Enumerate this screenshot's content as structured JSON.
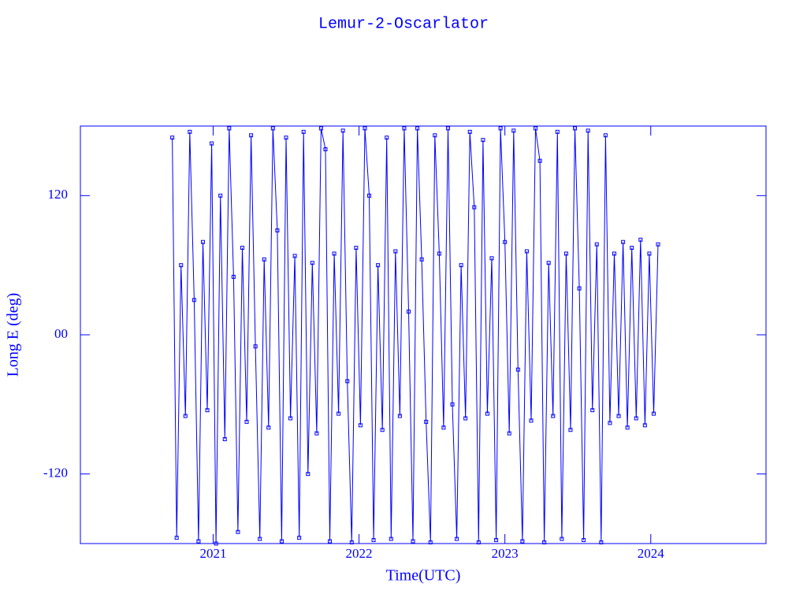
{
  "chart_data": {
    "type": "line",
    "title": "Lemur-2-Oscarlator",
    "xlabel": "Time(UTC)",
    "ylabel": "Long E (deg)",
    "color": "#0000ff",
    "xlim": [
      2020.09,
      2024.79
    ],
    "xticks": [
      2021,
      2022,
      2023,
      2024
    ],
    "ylim": [
      -180,
      180
    ],
    "yticks": [
      120,
      {
        "value": 0,
        "label": "00"
      },
      -120
    ],
    "x": [
      2020.72,
      2020.75,
      2020.78,
      2020.81,
      2020.84,
      2020.87,
      2020.9,
      2020.93,
      2020.96,
      2020.99,
      2021.02,
      2021.05,
      2021.08,
      2021.11,
      2021.14,
      2021.17,
      2021.2,
      2021.23,
      2021.26,
      2021.29,
      2021.32,
      2021.35,
      2021.38,
      2021.41,
      2021.44,
      2021.47,
      2021.5,
      2021.53,
      2021.56,
      2021.59,
      2021.62,
      2021.65,
      2021.68,
      2021.71,
      2021.74,
      2021.77,
      2021.8,
      2021.83,
      2021.86,
      2021.89,
      2021.92,
      2021.95,
      2021.98,
      2022.01,
      2022.04,
      2022.07,
      2022.1,
      2022.13,
      2022.16,
      2022.19,
      2022.22,
      2022.25,
      2022.28,
      2022.31,
      2022.34,
      2022.37,
      2022.4,
      2022.43,
      2022.46,
      2022.49,
      2022.52,
      2022.55,
      2022.58,
      2022.61,
      2022.64,
      2022.67,
      2022.7,
      2022.73,
      2022.76,
      2022.79,
      2022.82,
      2022.85,
      2022.88,
      2022.91,
      2022.94,
      2022.97,
      2023,
      2023.03,
      2023.06,
      2023.09,
      2023.12,
      2023.15,
      2023.18,
      2023.21,
      2023.24,
      2023.27,
      2023.3,
      2023.33,
      2023.36,
      2023.39,
      2023.42,
      2023.45,
      2023.48,
      2023.51,
      2023.54,
      2023.57,
      2023.6,
      2023.63,
      2023.66,
      2023.69,
      2023.72,
      2023.75,
      2023.78,
      2023.81,
      2023.84,
      2023.87,
      2023.9,
      2023.93,
      2023.96,
      2023.99,
      2024.02,
      2024.05
    ],
    "values": [
      170,
      -175,
      60,
      -70,
      175,
      30,
      -178,
      80,
      -65,
      165,
      -180,
      120,
      -90,
      178,
      50,
      -170,
      75,
      -75,
      172,
      -10,
      -176,
      65,
      -80,
      178,
      90,
      -178,
      170,
      -72,
      68,
      -175,
      175,
      -120,
      62,
      -85,
      178,
      160,
      -178,
      70,
      -68,
      176,
      -40,
      -179,
      75,
      -78,
      178,
      120,
      -177,
      60,
      -82,
      170,
      -176,
      72,
      -70,
      178,
      20,
      -178,
      178,
      65,
      -75,
      -179,
      172,
      70,
      -80,
      178,
      -60,
      -176,
      60,
      -72,
      175,
      110,
      -179,
      168,
      -68,
      66,
      -177,
      178,
      80,
      -85,
      176,
      -30,
      -178,
      72,
      -74,
      178,
      150,
      -179,
      62,
      -70,
      175,
      -176,
      70,
      -82,
      178,
      40,
      -177,
      176,
      -65,
      78,
      -179,
      172,
      -76,
      70,
      -70,
      80,
      -80,
      75,
      -72,
      82,
      -78,
      70,
      -68,
      78
    ]
  }
}
